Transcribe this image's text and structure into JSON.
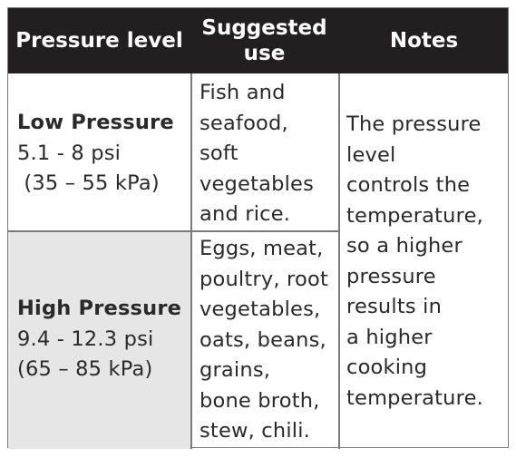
{
  "headers": {
    "pressure_level": "Pressure level",
    "suggested_use": [
      "Suggested",
      "use"
    ],
    "notes": "Notes"
  },
  "rows": [
    {
      "name": "Low Pressure",
      "range_psi": "5.1 - 8 psi",
      "range_kpa": " (35 – 55 kPa)",
      "suggested_use": [
        "Fish and",
        "seafood,",
        "soft",
        "vegetables",
        "and rice."
      ]
    },
    {
      "name": "High Pressure",
      "range_psi": "9.4 - 12.3 psi",
      "range_kpa": "(65 – 85 kPa)",
      "suggested_use": [
        "Eggs, meat,",
        "poultry, root",
        "vegetables,",
        "oats, beans,",
        "grains,",
        "bone broth,",
        "stew, chili."
      ]
    }
  ],
  "notes": [
    "The pressure",
    "level",
    "controls the",
    "temperature,",
    "so a higher",
    "pressure",
    "results in",
    "a higher",
    "cooking",
    "temperature."
  ],
  "colors": {
    "header_bg": "#231f20",
    "header_text": "#ffffff",
    "shaded_cell": "#e6e6e6",
    "border": "#7a7a7a"
  }
}
